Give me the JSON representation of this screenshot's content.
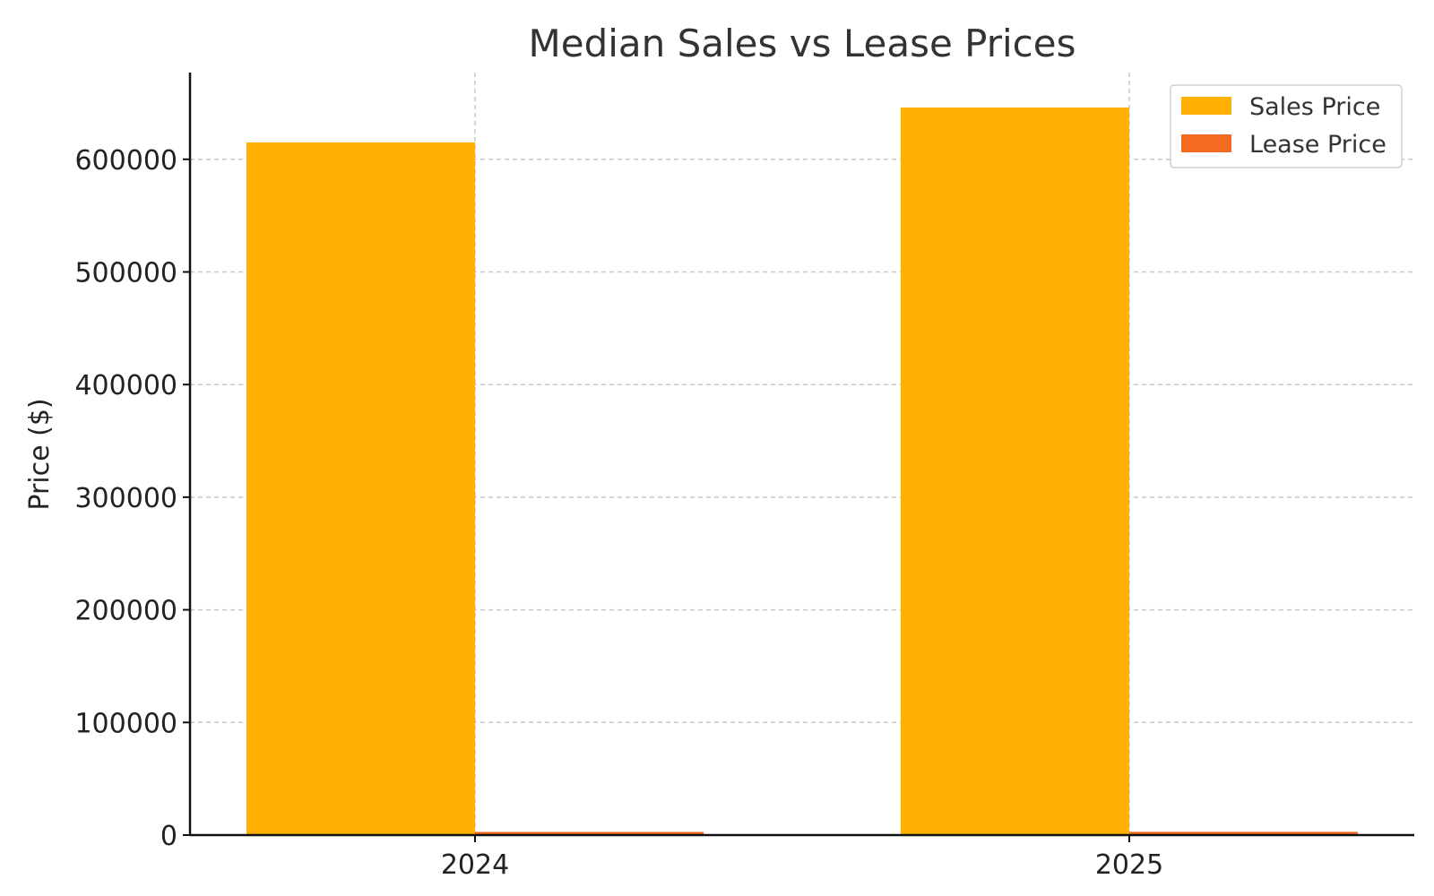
{
  "chart_data": {
    "type": "bar",
    "title": "Median Sales vs Lease Prices",
    "xlabel": "",
    "ylabel": "Price ($)",
    "categories": [
      "2024",
      "2025"
    ],
    "series": [
      {
        "name": "Sales Price",
        "values": [
          615000,
          646000
        ],
        "color": "#FFB000"
      },
      {
        "name": "Lease Price",
        "values": [
          2800,
          2900
        ],
        "color": "#F26B21"
      }
    ],
    "ylim": [
      0,
      677000
    ],
    "yticks": [
      0,
      100000,
      200000,
      300000,
      400000,
      500000,
      600000
    ],
    "ytick_labels": [
      "0",
      "100000",
      "200000",
      "300000",
      "400000",
      "500000",
      "600000"
    ],
    "grid": true,
    "legend_position": "top-right"
  }
}
